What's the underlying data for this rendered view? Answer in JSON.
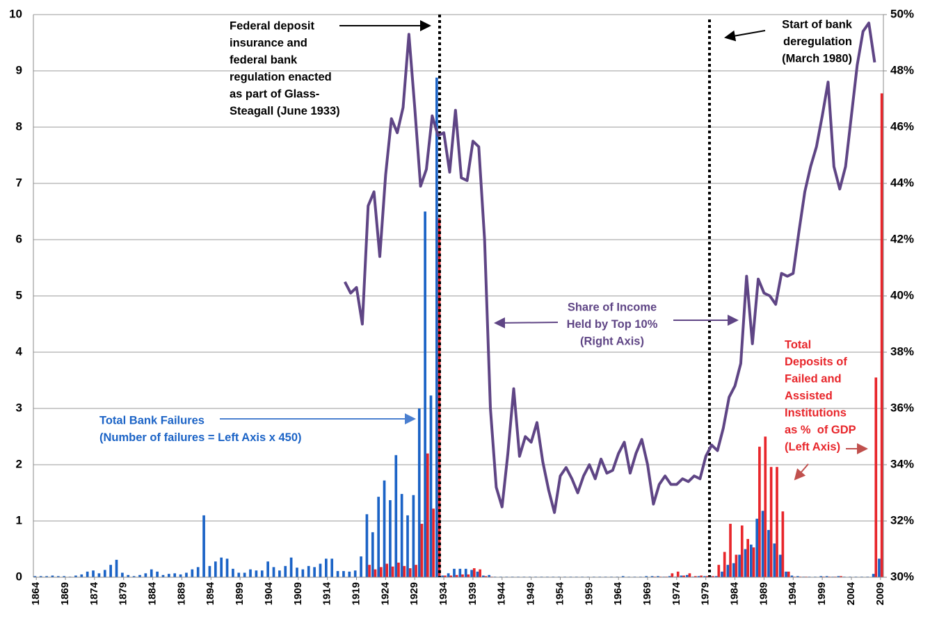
{
  "chart_data": {
    "type": "bar",
    "x": [
      1864,
      1865,
      1866,
      1867,
      1868,
      1869,
      1870,
      1871,
      1872,
      1873,
      1874,
      1875,
      1876,
      1877,
      1878,
      1879,
      1880,
      1881,
      1882,
      1883,
      1884,
      1885,
      1886,
      1887,
      1888,
      1889,
      1890,
      1891,
      1892,
      1893,
      1894,
      1895,
      1896,
      1897,
      1898,
      1899,
      1900,
      1901,
      1902,
      1903,
      1904,
      1905,
      1906,
      1907,
      1908,
      1909,
      1910,
      1911,
      1912,
      1913,
      1914,
      1915,
      1916,
      1917,
      1918,
      1919,
      1920,
      1921,
      1922,
      1923,
      1924,
      1925,
      1926,
      1927,
      1928,
      1929,
      1930,
      1931,
      1932,
      1933,
      1934,
      1935,
      1936,
      1937,
      1938,
      1939,
      1940,
      1941,
      1942,
      1943,
      1944,
      1945,
      1946,
      1947,
      1948,
      1949,
      1950,
      1951,
      1952,
      1953,
      1954,
      1955,
      1956,
      1957,
      1958,
      1959,
      1960,
      1961,
      1962,
      1963,
      1964,
      1965,
      1966,
      1967,
      1968,
      1969,
      1970,
      1971,
      1972,
      1973,
      1974,
      1975,
      1976,
      1977,
      1978,
      1979,
      1980,
      1981,
      1982,
      1983,
      1984,
      1985,
      1986,
      1987,
      1988,
      1989,
      1990,
      1991,
      1992,
      1993,
      1994,
      1995,
      1996,
      1997,
      1998,
      1999,
      2000,
      2001,
      2002,
      2003,
      2004,
      2005,
      2006,
      2007,
      2008,
      2009
    ],
    "xlim": [
      1863.5,
      2009.5
    ],
    "xticks": [
      1864,
      1869,
      1874,
      1879,
      1884,
      1889,
      1894,
      1899,
      1904,
      1909,
      1914,
      1919,
      1924,
      1929,
      1934,
      1939,
      1944,
      1949,
      1954,
      1959,
      1964,
      1969,
      1974,
      1979,
      1984,
      1989,
      1994,
      1999,
      2004,
      2009
    ],
    "ylim": [
      0,
      10
    ],
    "yticks": [
      0,
      1,
      2,
      3,
      4,
      5,
      6,
      7,
      8,
      9,
      10
    ],
    "y2lim": [
      30,
      50
    ],
    "y2ticks": [
      {
        "value": 30,
        "label": "30%"
      },
      {
        "value": 32,
        "label": "32%"
      },
      {
        "value": 34,
        "label": "34%"
      },
      {
        "value": 36,
        "label": "36%"
      },
      {
        "value": 38,
        "label": "38%"
      },
      {
        "value": 40,
        "label": "40%"
      },
      {
        "value": 42,
        "label": "42%"
      },
      {
        "value": 44,
        "label": "44%"
      },
      {
        "value": 46,
        "label": "46%"
      },
      {
        "value": 48,
        "label": "48%"
      },
      {
        "value": 50,
        "label": "50%"
      }
    ],
    "grid": true,
    "series": [
      {
        "type": "bar",
        "color": "#1b63c6",
        "values": [
          0.02,
          0.02,
          0.02,
          0.03,
          0.02,
          0.02,
          0.01,
          0.03,
          0.05,
          0.1,
          0.12,
          0.07,
          0.13,
          0.22,
          0.31,
          0.08,
          0.04,
          0.02,
          0.04,
          0.07,
          0.14,
          0.1,
          0.04,
          0.06,
          0.07,
          0.05,
          0.08,
          0.14,
          0.18,
          1.1,
          0.2,
          0.28,
          0.35,
          0.33,
          0.15,
          0.08,
          0.08,
          0.14,
          0.12,
          0.12,
          0.28,
          0.18,
          0.12,
          0.2,
          0.35,
          0.17,
          0.14,
          0.2,
          0.18,
          0.24,
          0.33,
          0.33,
          0.11,
          0.11,
          0.1,
          0.12,
          0.37,
          1.12,
          0.8,
          1.43,
          1.72,
          1.37,
          2.17,
          1.48,
          1.1,
          1.46,
          3.0,
          6.5,
          3.23,
          8.88,
          0.03,
          0.07,
          0.15,
          0.15,
          0.15,
          0.13,
          0.1,
          0.03,
          0.04,
          0.01,
          0.01,
          0.01,
          0.01,
          0.01,
          0.01,
          0.01,
          0.01,
          0.01,
          0.01,
          0.01,
          0.01,
          0.01,
          0.01,
          0.01,
          0.01,
          0.01,
          0.01,
          0.01,
          0.01,
          0.01,
          0.01,
          0.02,
          0.01,
          0.01,
          0.01,
          0.02,
          0.02,
          0.02,
          0.01,
          0.02,
          0.01,
          0.03,
          0.04,
          0.01,
          0.02,
          0.02,
          0.02,
          0.02,
          0.1,
          0.22,
          0.25,
          0.4,
          0.5,
          0.58,
          1.04,
          1.18,
          0.84,
          0.6,
          0.4,
          0.1,
          0.03,
          0.02,
          0.01,
          0.01,
          0.01,
          0.02,
          0.02,
          0.01,
          0.02,
          0.01,
          0.01,
          0.01,
          0.01,
          0.01,
          0.06,
          0.33
        ]
      },
      {
        "type": "bar",
        "color": "#e8262b",
        "values": [
          0,
          0,
          0,
          0,
          0,
          0,
          0,
          0,
          0,
          0,
          0,
          0,
          0,
          0,
          0,
          0,
          0,
          0,
          0,
          0,
          0,
          0,
          0,
          0,
          0,
          0,
          0,
          0,
          0,
          0,
          0,
          0,
          0,
          0,
          0,
          0,
          0,
          0,
          0,
          0,
          0,
          0,
          0,
          0,
          0,
          0,
          0,
          0,
          0,
          0,
          0,
          0,
          0,
          0,
          0,
          0,
          0,
          0.22,
          0.14,
          0.18,
          0.24,
          0.19,
          0.26,
          0.2,
          0.16,
          0.22,
          0.95,
          2.2,
          1.22,
          6.38,
          0.03,
          0.03,
          0.04,
          0.05,
          0.05,
          0.16,
          0.14,
          0.02,
          0.01,
          0,
          0,
          0,
          0,
          0,
          0,
          0,
          0,
          0,
          0,
          0,
          0,
          0,
          0,
          0,
          0,
          0,
          0,
          0,
          0,
          0,
          0,
          0,
          0,
          0,
          0,
          0,
          0.01,
          0.01,
          0.01,
          0.07,
          0.1,
          0.03,
          0.07,
          0.02,
          0.03,
          0.02,
          0.02,
          0.22,
          0.45,
          0.95,
          0.4,
          0.92,
          0.68,
          0.53,
          2.32,
          2.5,
          1.96,
          1.96,
          1.17,
          0.1,
          0.01,
          0.01,
          0.01,
          0,
          0,
          0.01,
          0.01,
          0.01,
          0.02,
          0,
          0,
          0,
          0,
          0,
          3.55,
          8.6
        ]
      },
      {
        "type": "line",
        "axis": "y2",
        "color": "#5f4585",
        "values": [
          null,
          null,
          null,
          null,
          null,
          null,
          null,
          null,
          null,
          null,
          null,
          null,
          null,
          null,
          null,
          null,
          null,
          null,
          null,
          null,
          null,
          null,
          null,
          null,
          null,
          null,
          null,
          null,
          null,
          null,
          null,
          null,
          null,
          null,
          null,
          null,
          null,
          null,
          null,
          null,
          null,
          null,
          null,
          null,
          null,
          null,
          null,
          null,
          null,
          null,
          null,
          null,
          null,
          40.5,
          40.1,
          40.3,
          39.0,
          43.2,
          43.7,
          41.4,
          44.3,
          46.3,
          45.8,
          46.7,
          49.3,
          46.7,
          43.9,
          44.5,
          46.4,
          45.7,
          45.8,
          44.4,
          46.6,
          44.2,
          44.1,
          45.5,
          45.3,
          42.0,
          36.0,
          33.2,
          32.5,
          34.4,
          36.7,
          34.3,
          35.0,
          34.8,
          35.5,
          34.1,
          33.1,
          32.3,
          33.6,
          33.9,
          33.5,
          33.0,
          33.6,
          34.0,
          33.5,
          34.2,
          33.7,
          33.8,
          34.4,
          34.8,
          33.7,
          34.4,
          34.9,
          34.0,
          32.6,
          33.3,
          33.6,
          33.3,
          33.3,
          33.5,
          33.4,
          33.6,
          33.5,
          34.3,
          34.7,
          34.5,
          35.3,
          36.4,
          36.8,
          37.6,
          40.7,
          38.3,
          40.6,
          40.1,
          40.0,
          39.7,
          40.8,
          40.7,
          40.8,
          42.3,
          43.7,
          44.6,
          45.3,
          46.4,
          47.6,
          44.6,
          43.8,
          44.6,
          46.4,
          48.2,
          49.4,
          49.7,
          48.3,
          null
        ]
      }
    ],
    "annotations": [
      {
        "color": "#000000",
        "lines": [
          "Federal deposit",
          "insurance and",
          "federal bank",
          "regulation enacted",
          "as part of Glass-",
          "Steagall (June 1933)"
        ]
      },
      {
        "color": "#000000",
        "lines": [
          "Start of bank",
          "deregulation",
          "(March 1980)"
        ]
      },
      {
        "color": "#5f4585",
        "lines": [
          "Share of Income",
          "Held by Top 10%",
          "(Right Axis)"
        ]
      },
      {
        "color": "#1b63c6",
        "lines": [
          "Total Bank Failures",
          "(Number of failures = Left Axis x 450)"
        ]
      },
      {
        "color": "#e8262b",
        "lines": [
          "Total",
          "Deposits of",
          "Failed and",
          "Assisted",
          "Institutions",
          "as %  of GDP",
          "(Left Axis)"
        ]
      }
    ]
  }
}
